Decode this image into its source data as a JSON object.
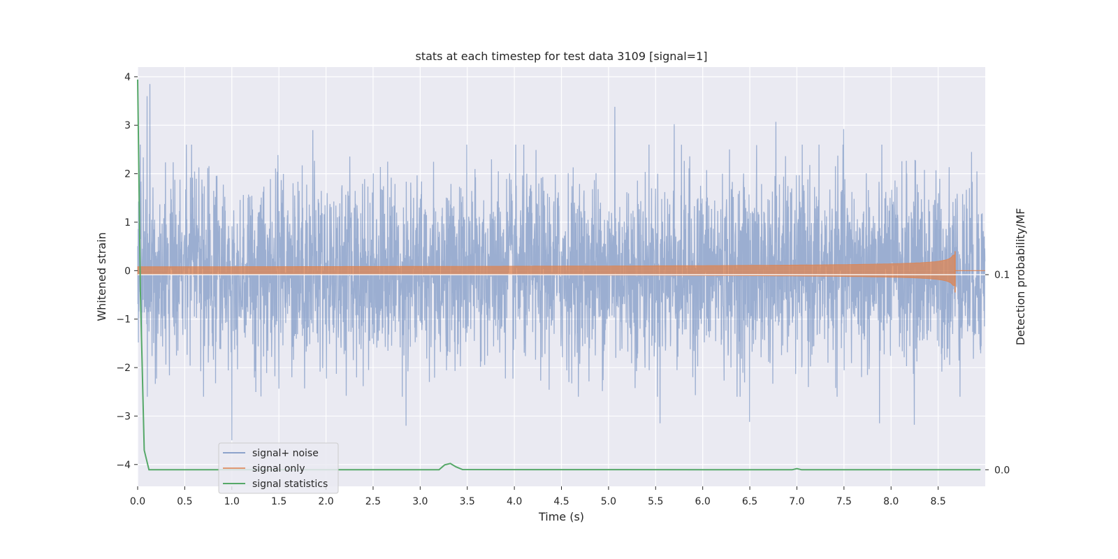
{
  "chart_data": {
    "type": "line",
    "title": "stats at each timestep for test data 3109 [signal=1]",
    "xlabel": "Time (s)",
    "ylabel": "Whitened strain",
    "ylabel_right": "Detection probability/MF",
    "xlim": [
      0.0,
      9.0
    ],
    "ylim": [
      -4.45,
      4.2
    ],
    "ylim_right": [
      -0.0085,
      0.2064
    ],
    "x_ticks": [
      "0.0",
      "0.5",
      "1.0",
      "1.5",
      "2.0",
      "2.5",
      "3.0",
      "3.5",
      "4.0",
      "4.5",
      "5.0",
      "5.5",
      "6.0",
      "6.5",
      "7.0",
      "7.5",
      "8.0",
      "8.5"
    ],
    "y_ticks": [
      "4",
      "3",
      "2",
      "1",
      "0",
      "−1",
      "−2",
      "−3",
      "−4"
    ],
    "y_ticks_right": [
      "0.1",
      "0.0"
    ],
    "grid": true,
    "legend_position": "lower-left",
    "colors": {
      "noise": "#4c72b0",
      "signal": "#dd8452",
      "stats": "#55a868",
      "background": "#eaeaf2",
      "grid": "#ffffff"
    },
    "series": [
      {
        "name": "signal+ noise",
        "kind": "strain",
        "axis": "left",
        "description_of_values": "whitened noise, approx ±1 sigma band, extremes to ±3.8",
        "notable_peaks": [
          {
            "x": 0.13,
            "y": 3.85
          },
          {
            "x": 0.1,
            "y": 3.6
          },
          {
            "x": 5.07,
            "y": 3.38
          },
          {
            "x": 6.78,
            "y": 3.07
          },
          {
            "x": 5.7,
            "y": 3.02
          },
          {
            "x": 7.5,
            "y": 2.92
          },
          {
            "x": 1.86,
            "y": 2.9
          },
          {
            "x": 1.0,
            "y": -3.5
          },
          {
            "x": 2.85,
            "y": -3.2
          },
          {
            "x": 5.55,
            "y": -3.15
          },
          {
            "x": 6.5,
            "y": -3.12
          },
          {
            "x": 7.88,
            "y": -3.15
          },
          {
            "x": 8.25,
            "y": -3.18
          }
        ]
      },
      {
        "name": "signal only",
        "kind": "chirp",
        "axis": "left",
        "x_start": 0.0,
        "x_merger": 8.68,
        "peak_amplitude": 0.35
      },
      {
        "name": "signal statistics",
        "kind": "stats",
        "axis": "right",
        "x": [
          0.0,
          0.03,
          0.07,
          0.12,
          3.2,
          3.26,
          3.32,
          3.38,
          3.45,
          6.95,
          7.0,
          7.05,
          8.95
        ],
        "y": [
          0.2,
          0.09,
          0.01,
          0.0,
          0.0,
          0.0025,
          0.0032,
          0.0015,
          0.0001,
          0.0,
          0.0006,
          0.0,
          0.0
        ]
      }
    ],
    "hline_right": {
      "y": 0.1
    }
  }
}
